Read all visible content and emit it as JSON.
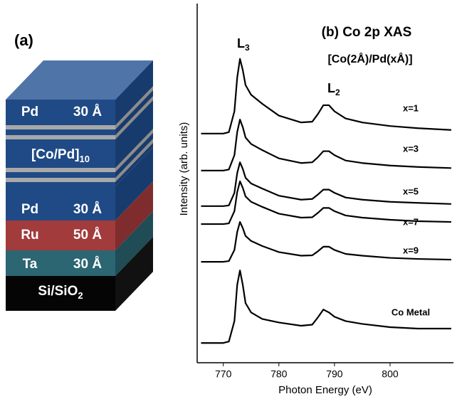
{
  "diagram": {
    "panel_label": "(a)",
    "layers": [
      {
        "material": "Pd",
        "thickness": "30 Å"
      },
      {
        "material": "[Co/Pd]",
        "subscript": "10"
      },
      {
        "material": "Pd",
        "thickness": "30 Å"
      },
      {
        "material": "Ru",
        "thickness": "50 Å"
      },
      {
        "material": "Ta",
        "thickness": "30 Å"
      },
      {
        "material": "Si/SiO",
        "subscript": "2"
      }
    ]
  },
  "chart_data": {
    "type": "line",
    "title": "(b) Co 2p XAS",
    "subtitle": "[Co(2Å)/Pd(xÅ)]",
    "x_label": "Photon Energy (eV)",
    "y_label": "Intensity (arb. units)",
    "annotations": [
      {
        "text": "L",
        "subscript": "3"
      },
      {
        "text": "L",
        "subscript": "2"
      }
    ],
    "xlim": [
      765.3,
      811.4
    ],
    "xticks": [
      770,
      780,
      790,
      800
    ],
    "ylim": [
      0,
      100
    ],
    "x": [
      766,
      770,
      771,
      772,
      772.5,
      773,
      773.5,
      774,
      775,
      777,
      780,
      784,
      786,
      787,
      788,
      789,
      790,
      792,
      795,
      800,
      805,
      811
    ],
    "series": [
      {
        "name": "x=1",
        "color": "#000000",
        "values": [
          63.8,
          63.8,
          64.2,
          70.0,
          79.4,
          84.6,
          81.5,
          77.3,
          74.6,
          72.1,
          68.8,
          66.9,
          67.1,
          69.2,
          71.7,
          71.7,
          70.0,
          68.0,
          66.9,
          65.9,
          65.3,
          64.8
        ]
      },
      {
        "name": "x=3",
        "color": "#000000",
        "values": [
          53.5,
          53.5,
          53.8,
          57.8,
          64.2,
          67.7,
          65.6,
          62.7,
          60.9,
          59.2,
          56.9,
          55.6,
          55.8,
          57.2,
          58.9,
          58.9,
          57.8,
          56.3,
          55.6,
          54.9,
          54.5,
          54.2
        ]
      },
      {
        "name": "x=5",
        "color": "#000000",
        "values": [
          43.6,
          43.6,
          43.8,
          47.3,
          52.8,
          55.8,
          54.0,
          51.5,
          49.9,
          48.5,
          46.5,
          45.4,
          45.6,
          46.8,
          48.2,
          48.2,
          47.3,
          46.0,
          45.4,
          44.8,
          44.5,
          44.2
        ]
      },
      {
        "name": "x=7",
        "color": "#000000",
        "values": [
          38.6,
          38.6,
          38.8,
          42.2,
          47.5,
          50.5,
          48.7,
          46.3,
          44.8,
          43.4,
          41.5,
          40.4,
          40.5,
          41.7,
          43.1,
          43.1,
          42.2,
          41.0,
          40.4,
          39.8,
          39.4,
          39.2
        ]
      },
      {
        "name": "x=9",
        "color": "#000000",
        "values": [
          28.1,
          28.1,
          28.3,
          31.4,
          36.4,
          39.2,
          37.5,
          35.3,
          33.9,
          32.5,
          30.8,
          29.8,
          29.9,
          31.0,
          32.3,
          32.3,
          31.4,
          30.3,
          29.8,
          29.2,
          28.9,
          28.7
        ]
      },
      {
        "name": "Co Metal",
        "color": "#000000",
        "values": [
          5.5,
          5.5,
          5.9,
          11.6,
          21.7,
          25.7,
          21.7,
          16.6,
          14.0,
          12.2,
          11.2,
          10.3,
          10.6,
          12.6,
          14.8,
          14.0,
          12.8,
          11.6,
          10.8,
          9.9,
          9.5,
          9.5
        ]
      }
    ]
  }
}
